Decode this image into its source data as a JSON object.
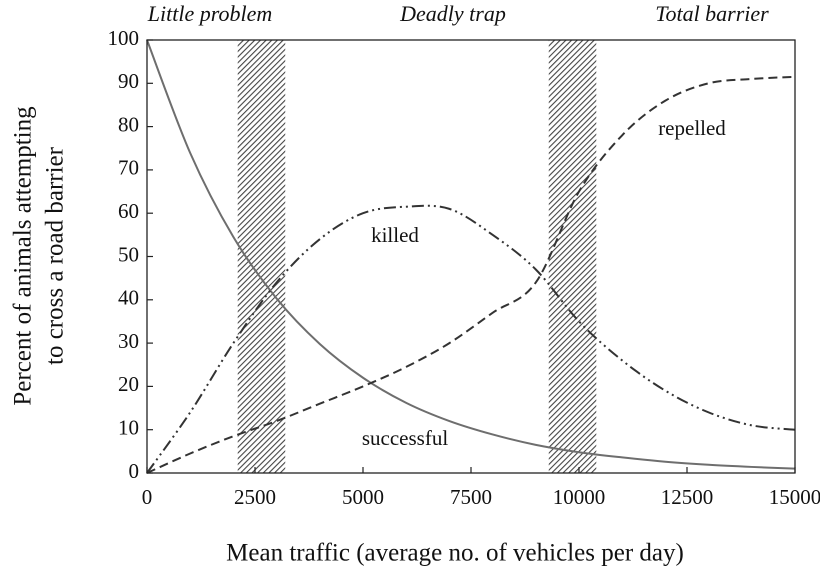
{
  "chart_data": {
    "type": "line",
    "xlabel": "Mean traffic (average no. of vehicles per day)",
    "ylabel": [
      "Percent of animals attempting",
      "to cross a road barrier"
    ],
    "annotations": [
      "Little problem",
      "Deadly trap",
      "Total barrier"
    ],
    "shaded_regions": [
      [
        2100,
        3200
      ],
      [
        9300,
        10400
      ]
    ],
    "x": [
      0,
      1000,
      2000,
      3000,
      4000,
      5000,
      6000,
      7000,
      8000,
      9000,
      10000,
      11000,
      12000,
      13000,
      14000,
      15000
    ],
    "series": [
      {
        "name": "successful",
        "color": "#6e6e6e",
        "dash": "solid",
        "values": [
          100,
          73.9,
          54.5,
          40.3,
          29.8,
          22.0,
          16.2,
          12.0,
          8.9,
          6.5,
          4.8,
          3.6,
          2.6,
          1.9,
          1.4,
          1.0
        ]
      },
      {
        "name": "killed",
        "color": "#333333",
        "dash": "dashdotdot",
        "values": [
          0,
          14,
          30,
          44,
          54,
          60,
          61.5,
          61,
          55,
          47,
          35,
          26,
          19,
          14,
          11,
          10
        ]
      },
      {
        "name": "repelled",
        "color": "#333333",
        "dash": "dashed",
        "values": [
          0,
          4.5,
          8.5,
          12,
          16,
          20,
          24.5,
          30,
          37,
          44,
          65,
          78,
          86,
          90,
          91,
          91.5
        ]
      }
    ],
    "xlim": [
      0,
      15000
    ],
    "xticks": [
      0,
      2500,
      5000,
      7500,
      10000,
      12500,
      15000
    ],
    "ylim": [
      0,
      100
    ],
    "yticks": [
      0,
      10,
      20,
      30,
      40,
      50,
      60,
      70,
      80,
      90,
      100
    ],
    "grid": false
  }
}
